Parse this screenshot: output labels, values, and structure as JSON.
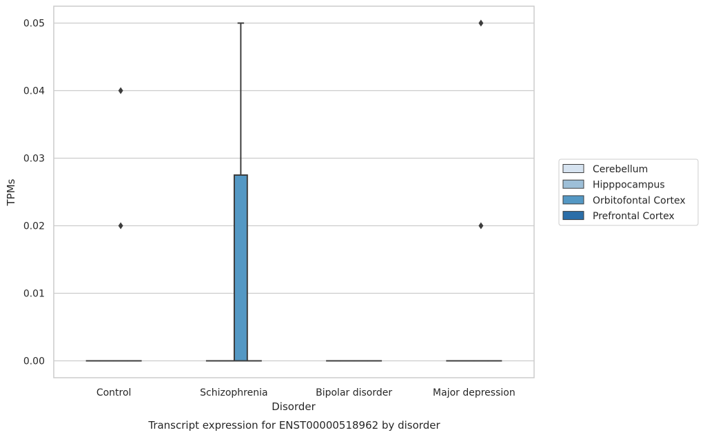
{
  "chart_data": {
    "type": "box",
    "caption": "Transcript expression for ENST00000518962 by disorder",
    "xlabel": "Disorder",
    "ylabel": "TPMs",
    "categories": [
      "Control",
      "Schizophrenia",
      "Bipolar disorder",
      "Major depression"
    ],
    "ylim": [
      -0.0025,
      0.0525
    ],
    "yticks": [
      0.0,
      0.01,
      0.02,
      0.03,
      0.04,
      0.05
    ],
    "ytick_labels": [
      "0.00",
      "0.01",
      "0.02",
      "0.03",
      "0.04",
      "0.05"
    ],
    "grid": "horizontal",
    "legend_position": "right",
    "series": [
      {
        "name": "Cerebellum",
        "color": "#d6e3f0",
        "boxes": [
          {
            "category": "Control",
            "q1": 0,
            "median": 0,
            "q3": 0,
            "whisker_low": 0,
            "whisker_high": 0,
            "outliers": []
          },
          {
            "category": "Schizophrenia",
            "q1": 0,
            "median": 0,
            "q3": 0,
            "whisker_low": 0,
            "whisker_high": 0,
            "outliers": []
          },
          {
            "category": "Bipolar disorder",
            "q1": 0,
            "median": 0,
            "q3": 0,
            "whisker_low": 0,
            "whisker_high": 0,
            "outliers": []
          },
          {
            "category": "Major depression",
            "q1": 0,
            "median": 0,
            "q3": 0,
            "whisker_low": 0,
            "whisker_high": 0,
            "outliers": []
          }
        ]
      },
      {
        "name": "Hipppocampus",
        "color": "#9dbfd8",
        "boxes": [
          {
            "category": "Control",
            "q1": 0,
            "median": 0,
            "q3": 0,
            "whisker_low": 0,
            "whisker_high": 0,
            "outliers": []
          },
          {
            "category": "Schizophrenia",
            "q1": 0,
            "median": 0,
            "q3": 0,
            "whisker_low": 0,
            "whisker_high": 0,
            "outliers": []
          },
          {
            "category": "Bipolar disorder",
            "q1": 0,
            "median": 0,
            "q3": 0,
            "whisker_low": 0,
            "whisker_high": 0,
            "outliers": []
          },
          {
            "category": "Major depression",
            "q1": 0,
            "median": 0,
            "q3": 0,
            "whisker_low": 0,
            "whisker_high": 0,
            "outliers": []
          }
        ]
      },
      {
        "name": "Orbitofontal Cortex",
        "color": "#5498c4",
        "boxes": [
          {
            "category": "Control",
            "q1": 0,
            "median": 0,
            "q3": 0,
            "whisker_low": 0,
            "whisker_high": 0,
            "outliers": [
              0.02,
              0.04
            ]
          },
          {
            "category": "Schizophrenia",
            "q1": 0,
            "median": 0,
            "q3": 0.0275,
            "whisker_low": 0,
            "whisker_high": 0.05,
            "outliers": []
          },
          {
            "category": "Bipolar disorder",
            "q1": 0,
            "median": 0,
            "q3": 0,
            "whisker_low": 0,
            "whisker_high": 0,
            "outliers": []
          },
          {
            "category": "Major depression",
            "q1": 0,
            "median": 0,
            "q3": 0,
            "whisker_low": 0,
            "whisker_high": 0,
            "outliers": [
              0.02,
              0.05
            ]
          }
        ]
      },
      {
        "name": "Prefrontal Cortex",
        "color": "#2b6ea8",
        "boxes": [
          {
            "category": "Control",
            "q1": 0,
            "median": 0,
            "q3": 0,
            "whisker_low": 0,
            "whisker_high": 0,
            "outliers": []
          },
          {
            "category": "Schizophrenia",
            "q1": 0,
            "median": 0,
            "q3": 0,
            "whisker_low": 0,
            "whisker_high": 0,
            "outliers": []
          },
          {
            "category": "Bipolar disorder",
            "q1": 0,
            "median": 0,
            "q3": 0,
            "whisker_low": 0,
            "whisker_high": 0,
            "outliers": []
          },
          {
            "category": "Major depression",
            "q1": 0,
            "median": 0,
            "q3": 0,
            "whisker_low": 0,
            "whisker_high": 0,
            "outliers": []
          }
        ]
      }
    ]
  }
}
